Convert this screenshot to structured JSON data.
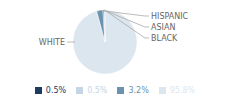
{
  "chart_data": {
    "type": "pie",
    "categories": [
      "WHITE",
      "HISPANIC",
      "ASIAN",
      "BLACK"
    ],
    "values": [
      95.8,
      3.2,
      0.5,
      0.5
    ],
    "value_labels": [
      "95.8%",
      "3.2%",
      "0.5%",
      "0.5%"
    ],
    "colors": [
      "#dce6ef",
      "#6b93b0",
      "#1e3a5f",
      "#c5d5e4"
    ],
    "legend": "bottom"
  }
}
